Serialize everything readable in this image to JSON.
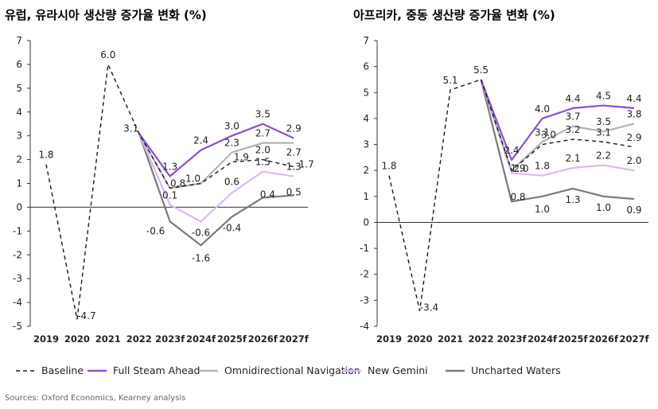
{
  "colors": {
    "Baseline": "#1a1a1a",
    "Full Steam Ahead": "#8a4fd8",
    "Omnidirectional Navigation": "#b3b3b3",
    "New Gemini": "#dbb8f2",
    "Uncharted Waters": "#7a7a7a"
  },
  "legend": {
    "items": [
      "Baseline",
      "Full Steam Ahead",
      "Omnidirectional Navigation",
      "New Gemini",
      "Uncharted Waters"
    ]
  },
  "source": "Sources: Oxford Economics, Kearney analysis",
  "chart_data": [
    {
      "type": "line",
      "title": "유럽, 유라시아 생산량 증가율 변화 (%)",
      "categories": [
        "2019",
        "2020",
        "2021",
        "2022",
        "2023f",
        "2024f",
        "2025f",
        "2026f",
        "2027f"
      ],
      "ylim": [
        -5,
        7
      ],
      "yticks": [
        -5,
        -4,
        -3,
        -2,
        -1,
        0,
        1,
        2,
        3,
        4,
        5,
        6,
        7
      ],
      "series": [
        {
          "name": "Baseline",
          "style": "dashed",
          "values": [
            1.8,
            -4.7,
            6.0,
            3.1,
            0.8,
            1.0,
            1.9,
            2.0,
            1.7
          ],
          "labels": [
            "1.8",
            "-4.7",
            "6.0",
            "3.1",
            "0.8",
            "1.0",
            "1.9",
            "2.0",
            "1.7"
          ]
        },
        {
          "name": "Full Steam Ahead",
          "style": "solid",
          "values": [
            null,
            null,
            null,
            3.1,
            1.3,
            2.4,
            3.0,
            3.5,
            2.9
          ],
          "labels": [
            null,
            null,
            null,
            null,
            "1.3",
            "2.4",
            "3.0",
            "3.5",
            "2.9"
          ]
        },
        {
          "name": "Omnidirectional Navigation",
          "style": "solid",
          "values": [
            null,
            null,
            null,
            3.1,
            0.8,
            1.0,
            2.3,
            2.7,
            2.7
          ],
          "labels": [
            null,
            null,
            null,
            null,
            null,
            null,
            "2.3",
            "2.7",
            "2.7"
          ]
        },
        {
          "name": "New Gemini",
          "style": "solid",
          "values": [
            null,
            null,
            null,
            3.1,
            0.1,
            -0.6,
            0.6,
            1.5,
            1.3
          ],
          "labels": [
            null,
            null,
            null,
            null,
            "0.1",
            "-0.6",
            "0.6",
            "1.5",
            "1.3"
          ]
        },
        {
          "name": "Uncharted Waters",
          "style": "solid",
          "values": [
            null,
            null,
            null,
            3.1,
            -0.6,
            -1.6,
            -0.4,
            0.4,
            0.5
          ],
          "labels": [
            null,
            null,
            null,
            null,
            "-0.6",
            "-1.6",
            "-0.4",
            "0.4",
            "0.5"
          ]
        }
      ]
    },
    {
      "type": "line",
      "title": "아프리카, 중동 생산량 증가율 변화 (%)",
      "categories": [
        "2019",
        "2020",
        "2021",
        "2022",
        "2023f",
        "2024f",
        "2025f",
        "2026f",
        "2027f"
      ],
      "ylim": [
        -4,
        7
      ],
      "yticks": [
        -4,
        -3,
        -2,
        -1,
        0,
        1,
        2,
        3,
        4,
        5,
        6,
        7
      ],
      "series": [
        {
          "name": "Baseline",
          "style": "dashed",
          "values": [
            1.8,
            -3.4,
            5.1,
            5.5,
            2.0,
            3.0,
            3.2,
            3.1,
            2.9
          ],
          "labels": [
            "1.8",
            "-3.4",
            "5.1",
            "5.5",
            "2.0",
            "3.0",
            "3.2",
            "3.1",
            "2.9"
          ]
        },
        {
          "name": "Full Steam Ahead",
          "style": "solid",
          "values": [
            null,
            null,
            null,
            5.5,
            2.4,
            4.0,
            4.4,
            4.5,
            4.4
          ],
          "labels": [
            null,
            null,
            null,
            null,
            "2.4",
            "4.0",
            "4.4",
            "4.5",
            "4.4"
          ]
        },
        {
          "name": "Omnidirectional Navigation",
          "style": "solid",
          "values": [
            null,
            null,
            null,
            5.5,
            2.0,
            3.1,
            3.7,
            3.5,
            3.8
          ],
          "labels": [
            null,
            null,
            null,
            null,
            null,
            "3.1",
            "3.7",
            "3.5",
            "3.8"
          ]
        },
        {
          "name": "New Gemini",
          "style": "solid",
          "values": [
            null,
            null,
            null,
            5.5,
            1.9,
            1.8,
            2.1,
            2.2,
            2.0
          ],
          "labels": [
            null,
            null,
            null,
            null,
            "1.9",
            "1.8",
            "2.1",
            "2.2",
            "2.0"
          ]
        },
        {
          "name": "Uncharted Waters",
          "style": "solid",
          "values": [
            null,
            null,
            null,
            5.5,
            0.8,
            1.0,
            1.3,
            1.0,
            0.9
          ],
          "labels": [
            null,
            null,
            null,
            null,
            "0.8",
            "1.0",
            "1.3",
            "1.0",
            "0.9"
          ]
        }
      ]
    }
  ]
}
